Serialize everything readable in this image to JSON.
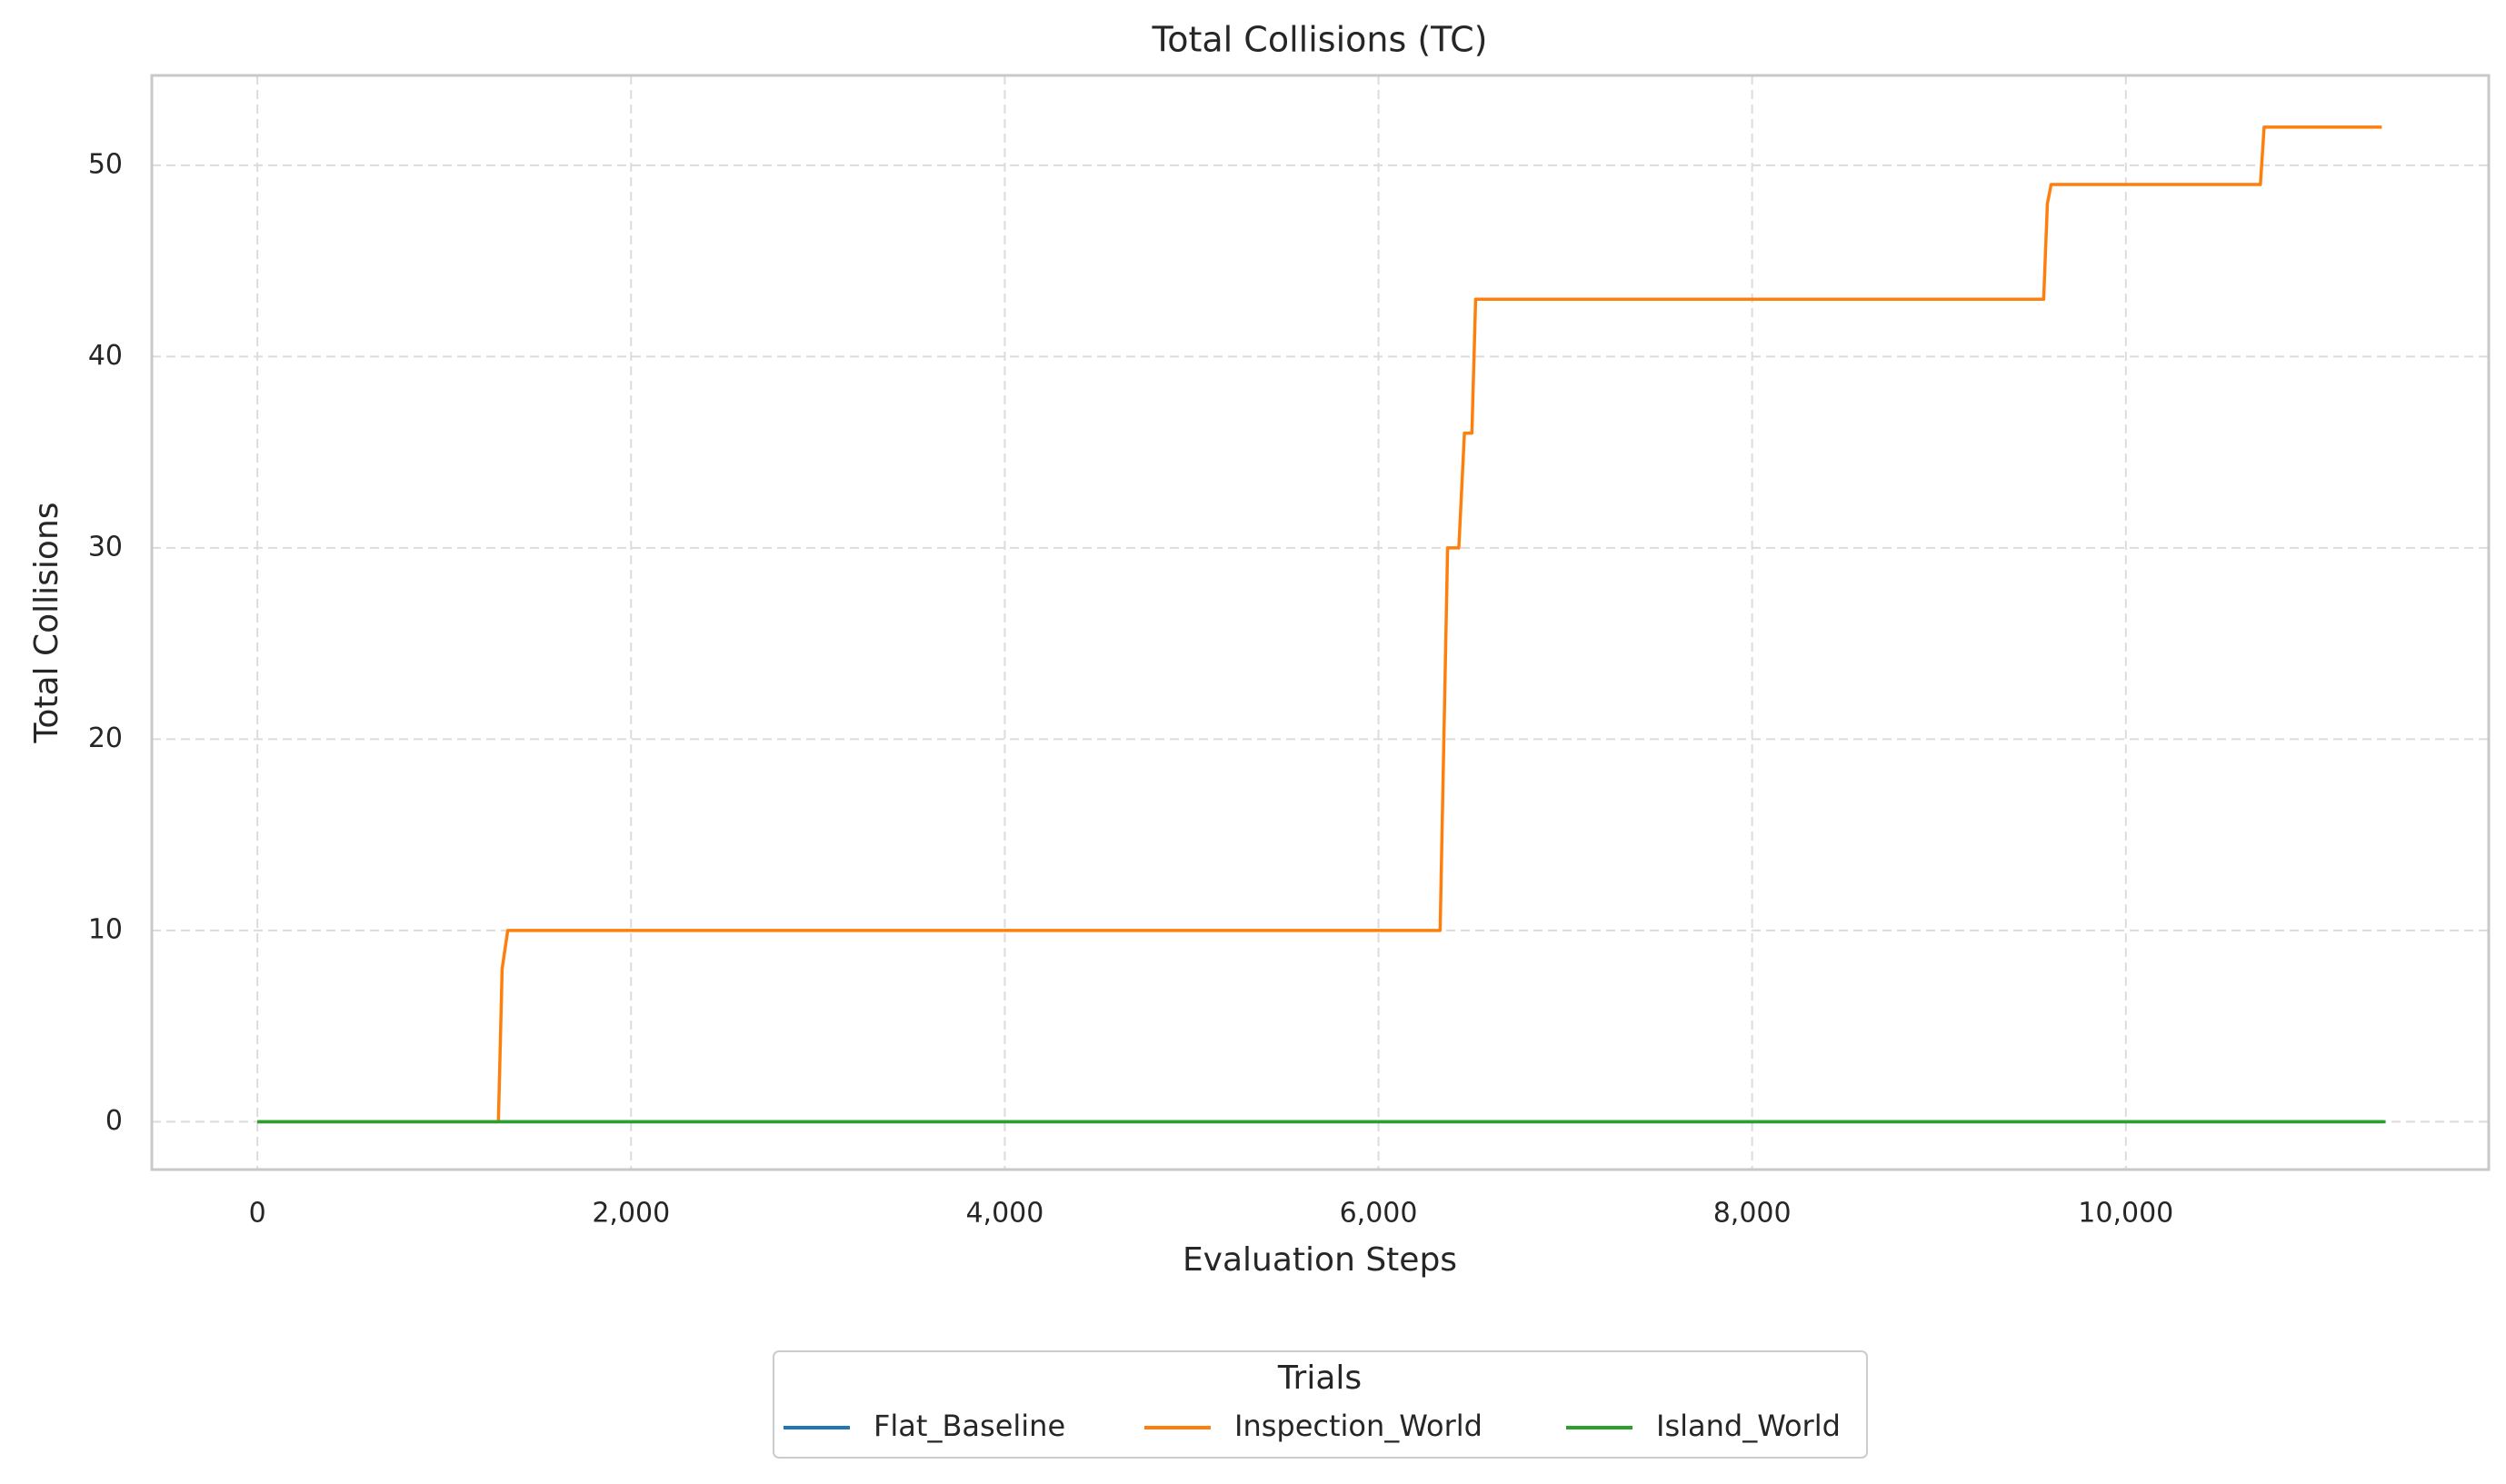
{
  "chart_data": {
    "type": "line",
    "title": "Total Collisions (TC)",
    "x_label": "Evaluation Steps",
    "y_label": "Total Collisions",
    "legend_title": "Trials",
    "legend_position": "bottom",
    "xlim": [
      -565,
      11942
    ],
    "ylim": [
      -2.5,
      54.7
    ],
    "xticks": [
      0,
      {
        "value": 2000,
        "label": "2,000"
      },
      {
        "value": 4000,
        "label": "4,000"
      },
      {
        "value": 6000,
        "label": "6,000"
      },
      {
        "value": 8000,
        "label": "8,000"
      },
      {
        "value": 10000,
        "label": "10,000"
      }
    ],
    "yticks": [
      0,
      10,
      20,
      30,
      40,
      50
    ],
    "grid": true,
    "series": [
      {
        "name": "Flat_Baseline",
        "color": "#1f77b4",
        "x": [
          0,
          11380
        ],
        "values": [
          0,
          0
        ]
      },
      {
        "name": "Inspection_World",
        "color": "#ff7f0e",
        "x": [
          0,
          1290,
          1310,
          1340,
          6330,
          6370,
          6430,
          6460,
          6500,
          6520,
          9560,
          9580,
          9600,
          10720,
          10740,
          11370
        ],
        "values": [
          0,
          0,
          8,
          10,
          10,
          30,
          30,
          36,
          36,
          43,
          43,
          48,
          49,
          49,
          52,
          52
        ]
      },
      {
        "name": "Island_World",
        "color": "#2ca02c",
        "x": [
          0,
          11390
        ],
        "values": [
          0,
          0
        ]
      }
    ]
  }
}
